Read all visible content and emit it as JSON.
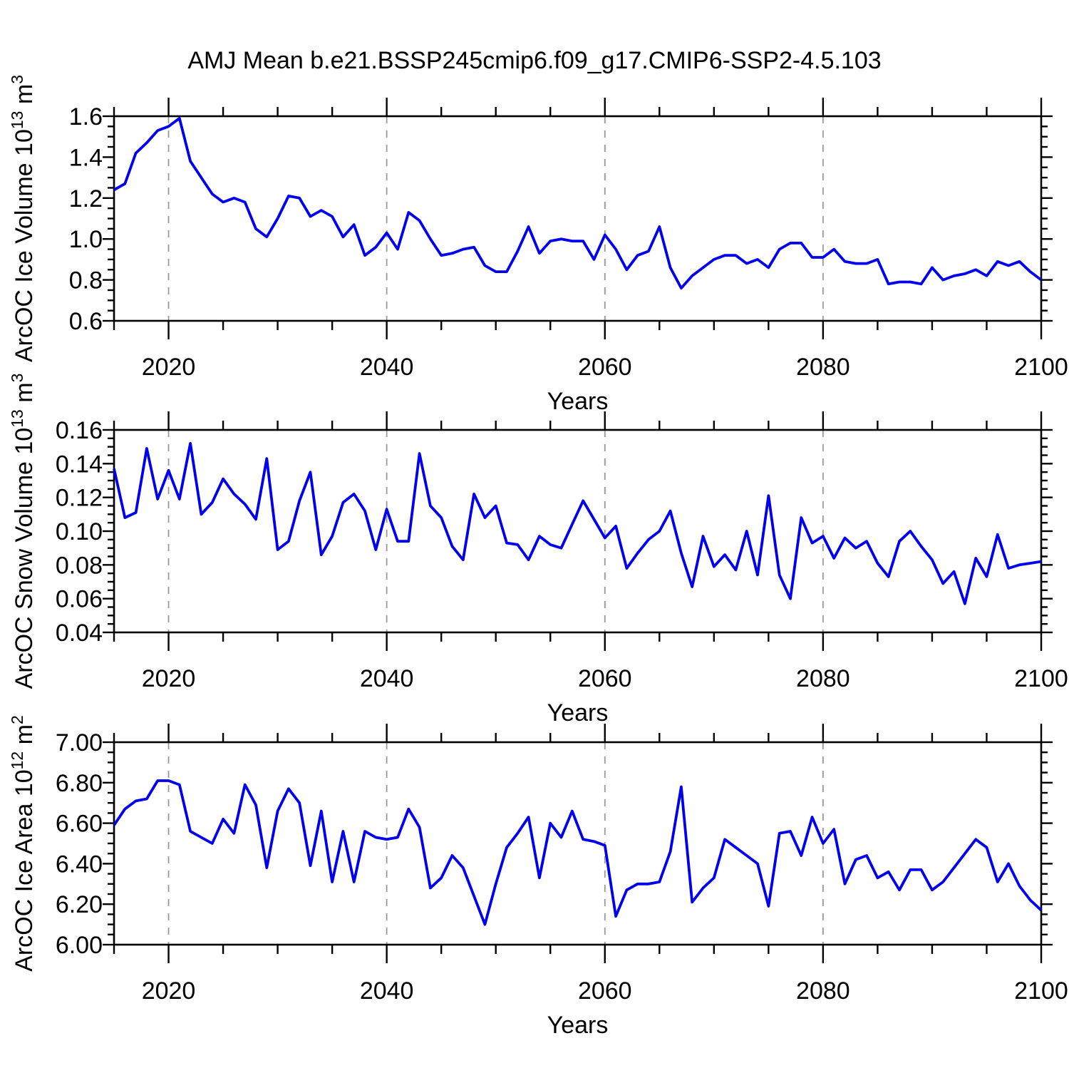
{
  "title": "AMJ Mean b.e21.BSSP245cmip6.f09_g17.CMIP6-SSP2-4.5.103",
  "styles": {
    "line_color": "#0000EE",
    "axis_color": "#000000",
    "grid_color": "#999999",
    "text_color": "#000000"
  },
  "chart_data": [
    {
      "name": "arcoc-ice-volume",
      "type": "line",
      "ylabel_parts": [
        {
          "text": "ArcOC Ice Volume 10",
          "sup": false
        },
        {
          "text": "13",
          "sup": true
        },
        {
          "text": " m",
          "sup": false
        },
        {
          "text": "3",
          "sup": true
        }
      ],
      "xlabel": "Years",
      "ylim": [
        0.6,
        1.6
      ],
      "yticks": [
        {
          "v": 0.6,
          "label": "0.6"
        },
        {
          "v": 0.8,
          "label": "0.8"
        },
        {
          "v": 1.0,
          "label": "1.0"
        },
        {
          "v": 1.2,
          "label": "1.2"
        },
        {
          "v": 1.4,
          "label": "1.4"
        },
        {
          "v": 1.6,
          "label": "1.6"
        }
      ],
      "yminor_step": 0.05,
      "xlim": [
        2015,
        2100
      ],
      "xticks": [
        {
          "v": 2020,
          "label": "2020"
        },
        {
          "v": 2040,
          "label": "2040"
        },
        {
          "v": 2060,
          "label": "2060"
        },
        {
          "v": 2080,
          "label": "2080"
        },
        {
          "v": 2100,
          "label": "2100"
        }
      ],
      "xminor_step": 5,
      "x_gridlines": [
        2020,
        2040,
        2060,
        2080
      ],
      "x_start": 2015,
      "x_step": 1,
      "values": [
        1.24,
        1.27,
        1.42,
        1.47,
        1.53,
        1.55,
        1.59,
        1.38,
        1.3,
        1.22,
        1.18,
        1.2,
        1.18,
        1.05,
        1.01,
        1.1,
        1.21,
        1.2,
        1.11,
        1.14,
        1.11,
        1.01,
        1.07,
        0.92,
        0.96,
        1.03,
        0.95,
        1.13,
        1.09,
        1.0,
        0.92,
        0.93,
        0.95,
        0.96,
        0.87,
        0.84,
        0.84,
        0.94,
        1.06,
        0.93,
        0.99,
        1.0,
        0.99,
        0.99,
        0.9,
        1.02,
        0.95,
        0.85,
        0.92,
        0.94,
        1.06,
        0.86,
        0.76,
        0.82,
        0.86,
        0.9,
        0.92,
        0.92,
        0.88,
        0.9,
        0.86,
        0.95,
        0.98,
        0.98,
        0.91,
        0.91,
        0.95,
        0.89,
        0.88,
        0.88,
        0.9,
        0.78,
        0.79,
        0.79,
        0.78,
        0.86,
        0.8,
        0.82,
        0.83,
        0.85,
        0.82,
        0.89,
        0.87,
        0.89,
        0.84,
        0.8
      ]
    },
    {
      "name": "arcoc-snow-volume",
      "type": "line",
      "ylabel_parts": [
        {
          "text": "ArcOC Snow Volume 10",
          "sup": false
        },
        {
          "text": "13",
          "sup": true
        },
        {
          "text": " m",
          "sup": false
        },
        {
          "text": "3",
          "sup": true
        }
      ],
      "xlabel": "Years",
      "ylim": [
        0.04,
        0.16
      ],
      "yticks": [
        {
          "v": 0.04,
          "label": "0.04"
        },
        {
          "v": 0.06,
          "label": "0.06"
        },
        {
          "v": 0.08,
          "label": "0.08"
        },
        {
          "v": 0.1,
          "label": "0.10"
        },
        {
          "v": 0.12,
          "label": "0.12"
        },
        {
          "v": 0.14,
          "label": "0.14"
        },
        {
          "v": 0.16,
          "label": "0.16"
        }
      ],
      "yminor_step": 0.005,
      "xlim": [
        2015,
        2100
      ],
      "xticks": [
        {
          "v": 2020,
          "label": "2020"
        },
        {
          "v": 2040,
          "label": "2040"
        },
        {
          "v": 2060,
          "label": "2060"
        },
        {
          "v": 2080,
          "label": "2080"
        },
        {
          "v": 2100,
          "label": "2100"
        }
      ],
      "xminor_step": 5,
      "x_gridlines": [
        2020,
        2040,
        2060,
        2080
      ],
      "x_start": 2015,
      "x_step": 1,
      "values": [
        0.137,
        0.108,
        0.111,
        0.149,
        0.119,
        0.136,
        0.119,
        0.152,
        0.11,
        0.117,
        0.131,
        0.122,
        0.116,
        0.107,
        0.143,
        0.089,
        0.094,
        0.118,
        0.135,
        0.086,
        0.097,
        0.117,
        0.122,
        0.112,
        0.089,
        0.113,
        0.094,
        0.094,
        0.146,
        0.115,
        0.108,
        0.091,
        0.083,
        0.122,
        0.108,
        0.115,
        0.093,
        0.092,
        0.083,
        0.097,
        0.092,
        0.09,
        0.104,
        0.118,
        0.107,
        0.096,
        0.103,
        0.078,
        0.087,
        0.095,
        0.1,
        0.112,
        0.087,
        0.067,
        0.097,
        0.079,
        0.086,
        0.077,
        0.1,
        0.074,
        0.121,
        0.074,
        0.06,
        0.108,
        0.093,
        0.097,
        0.084,
        0.096,
        0.09,
        0.094,
        0.081,
        0.073,
        0.094,
        0.1,
        0.091,
        0.083,
        0.069,
        0.076,
        0.057,
        0.084,
        0.073,
        0.098,
        0.078,
        0.08,
        0.081,
        0.082
      ]
    },
    {
      "name": "arcoc-ice-area",
      "type": "line",
      "ylabel_parts": [
        {
          "text": "ArcOC Ice Area 10",
          "sup": false
        },
        {
          "text": "12",
          "sup": true
        },
        {
          "text": " m",
          "sup": false
        },
        {
          "text": "2",
          "sup": true
        }
      ],
      "xlabel": "Years",
      "ylim": [
        6.0,
        7.0
      ],
      "yticks": [
        {
          "v": 6.0,
          "label": "6.00"
        },
        {
          "v": 6.2,
          "label": "6.20"
        },
        {
          "v": 6.4,
          "label": "6.40"
        },
        {
          "v": 6.6,
          "label": "6.60"
        },
        {
          "v": 6.8,
          "label": "6.80"
        },
        {
          "v": 7.0,
          "label": "7.00"
        }
      ],
      "yminor_step": 0.05,
      "xlim": [
        2015,
        2100
      ],
      "xticks": [
        {
          "v": 2020,
          "label": "2020"
        },
        {
          "v": 2040,
          "label": "2040"
        },
        {
          "v": 2060,
          "label": "2060"
        },
        {
          "v": 2080,
          "label": "2080"
        },
        {
          "v": 2100,
          "label": "2100"
        }
      ],
      "xminor_step": 5,
      "x_gridlines": [
        2020,
        2040,
        2060,
        2080
      ],
      "x_start": 2015,
      "x_step": 1,
      "values": [
        6.59,
        6.67,
        6.71,
        6.72,
        6.81,
        6.81,
        6.79,
        6.56,
        6.53,
        6.5,
        6.62,
        6.55,
        6.79,
        6.69,
        6.38,
        6.66,
        6.77,
        6.7,
        6.39,
        6.66,
        6.31,
        6.56,
        6.31,
        6.56,
        6.53,
        6.52,
        6.53,
        6.67,
        6.58,
        6.28,
        6.33,
        6.44,
        6.38,
        6.24,
        6.1,
        6.3,
        6.48,
        6.55,
        6.63,
        6.33,
        6.6,
        6.53,
        6.66,
        6.52,
        6.51,
        6.49,
        6.14,
        6.27,
        6.3,
        6.3,
        6.31,
        6.46,
        6.78,
        6.21,
        6.28,
        6.33,
        6.52,
        6.48,
        6.44,
        6.4,
        6.19,
        6.55,
        6.56,
        6.44,
        6.63,
        6.5,
        6.57,
        6.3,
        6.42,
        6.44,
        6.33,
        6.36,
        6.27,
        6.37,
        6.37,
        6.27,
        6.31,
        6.38,
        6.45,
        6.52,
        6.48,
        6.31,
        6.4,
        6.29,
        6.22,
        6.17
      ]
    }
  ]
}
